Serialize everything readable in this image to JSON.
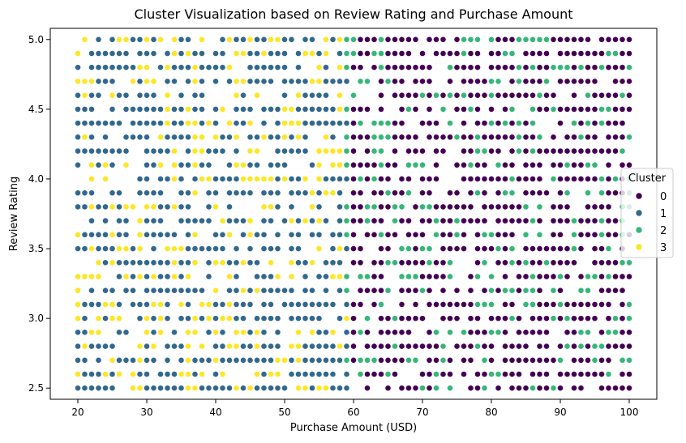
{
  "chart_data": {
    "type": "scatter",
    "title": "Cluster Visualization based on Review Rating and Purchase Amount",
    "xlabel": "Purchase Amount (USD)",
    "ylabel": "Review Rating",
    "xlim": [
      16,
      104
    ],
    "ylim": [
      2.42,
      5.08
    ],
    "xticks": [
      20,
      30,
      40,
      50,
      60,
      70,
      80,
      90,
      100
    ],
    "yticks": [
      2.5,
      3.0,
      3.5,
      4.0,
      4.5,
      5.0
    ],
    "xtick_labels": [
      "20",
      "30",
      "40",
      "50",
      "60",
      "70",
      "80",
      "90",
      "100"
    ],
    "ytick_labels": [
      "2.5",
      "3.0",
      "3.5",
      "4.0",
      "4.5",
      "5.0"
    ],
    "grid": false,
    "legend": {
      "title": "Cluster",
      "placement": "center-right",
      "labels": [
        "0",
        "1",
        "2",
        "3"
      ]
    },
    "colors": {
      "0": "#440154",
      "1": "#31688e",
      "2": "#35b779",
      "3": "#fde725"
    },
    "series": [
      {
        "name": "0",
        "x_range": [
          60,
          100
        ],
        "y_range": [
          2.5,
          5.0
        ],
        "x_step": 1,
        "y_step": 0.1
      },
      {
        "name": "1",
        "x_range": [
          20,
          59
        ],
        "y_range": [
          2.5,
          5.0
        ],
        "x_step": 1,
        "y_step": 0.1
      },
      {
        "name": "2",
        "x_range": [
          59,
          100
        ],
        "y_range": [
          2.5,
          5.0
        ],
        "x_step": 1,
        "y_step": 0.1
      },
      {
        "name": "3",
        "x_range": [
          20,
          59
        ],
        "y_range": [
          2.5,
          5.0
        ],
        "x_step": 1,
        "y_step": 0.1
      }
    ]
  }
}
